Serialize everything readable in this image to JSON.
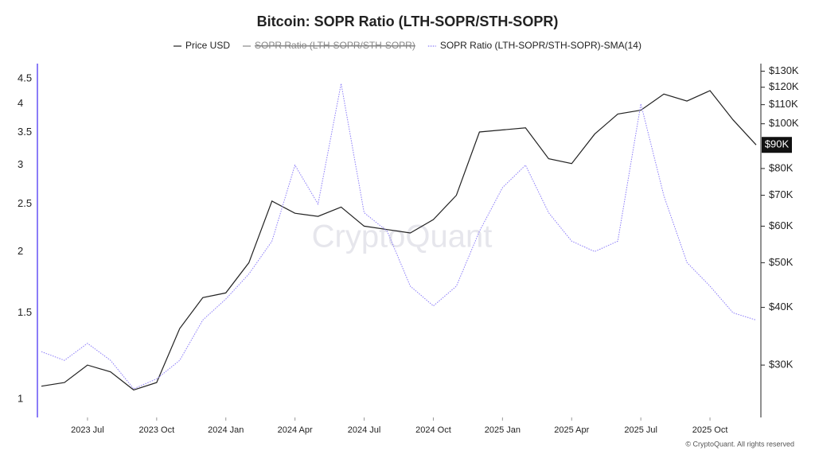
{
  "chart_data": {
    "type": "line",
    "title": "Bitcoin: SOPR Ratio (LTH-SOPR/STH-SOPR)",
    "x": [
      "2023-05",
      "2023-06",
      "2023-07",
      "2023-08",
      "2023-09",
      "2023-10",
      "2023-11",
      "2023-12",
      "2024-01",
      "2024-02",
      "2024-03",
      "2024-04",
      "2024-05",
      "2024-06",
      "2024-07",
      "2024-08",
      "2024-09",
      "2024-10",
      "2024-11",
      "2024-12",
      "2025-01",
      "2025-02",
      "2025-03",
      "2025-04",
      "2025-05",
      "2025-06",
      "2025-07",
      "2025-08",
      "2025-09",
      "2025-10",
      "2025-11",
      "2025-12"
    ],
    "xlim": [
      "2023-05",
      "2025-12"
    ],
    "xticks": [
      {
        "value": "2023-07",
        "label": "2023 Jul"
      },
      {
        "value": "2023-10",
        "label": "2023 Oct"
      },
      {
        "value": "2024-01",
        "label": "2024 Jan"
      },
      {
        "value": "2024-04",
        "label": "2024 Apr"
      },
      {
        "value": "2024-07",
        "label": "2024 Jul"
      },
      {
        "value": "2024-10",
        "label": "2024 Oct"
      },
      {
        "value": "2025-01",
        "label": "2025 Jan"
      },
      {
        "value": "2025-04",
        "label": "2025 Apr"
      },
      {
        "value": "2025-07",
        "label": "2025 Jul"
      },
      {
        "value": "2025-10",
        "label": "2025 Oct"
      }
    ],
    "series": [
      {
        "name": "Price USD",
        "color": "#222222",
        "axis": "y2",
        "values": [
          27000,
          27500,
          30000,
          29000,
          26500,
          27500,
          36000,
          42000,
          43000,
          50000,
          68000,
          64000,
          63000,
          66000,
          60000,
          59000,
          58000,
          62000,
          70000,
          96000,
          97000,
          98000,
          84000,
          82000,
          95000,
          105000,
          107000,
          116000,
          112000,
          118000,
          102000,
          90000
        ]
      },
      {
        "name": "SOPR Ratio (LTH-SOPR/STH-SOPR)-SMA(14)",
        "color": "#8b7cf8",
        "axis": "y",
        "values": [
          1.25,
          1.2,
          1.3,
          1.2,
          1.05,
          1.1,
          1.2,
          1.45,
          1.6,
          1.8,
          2.1,
          3.0,
          2.5,
          4.4,
          2.4,
          2.2,
          1.7,
          1.55,
          1.7,
          2.2,
          2.7,
          3.0,
          2.4,
          2.1,
          2.0,
          2.1,
          4.0,
          2.6,
          1.9,
          1.7,
          1.5,
          1.45
        ]
      }
    ],
    "legend_hidden": [
      {
        "name": "SOPR Ratio (LTH-SOPR/STH-SOPR)",
        "color": "#888888"
      }
    ],
    "log_scale": true,
    "ylim": [
      0.918,
      4.69
    ],
    "yticks": [
      1,
      1.5,
      2,
      2.5,
      3,
      3.5,
      4,
      4.5
    ],
    "y2lim": [
      23100,
      130800
    ],
    "y2ticks": [
      {
        "value": 30000,
        "label": "$30K"
      },
      {
        "value": 40000,
        "label": "$40K"
      },
      {
        "value": 50000,
        "label": "$50K"
      },
      {
        "value": 60000,
        "label": "$60K"
      },
      {
        "value": 70000,
        "label": "$70K"
      },
      {
        "value": 80000,
        "label": "$80K"
      },
      {
        "value": 100000,
        "label": "$100K"
      },
      {
        "value": 110000,
        "label": "$110K"
      },
      {
        "value": 120000,
        "label": "$120K"
      },
      {
        "value": 130000,
        "label": "$130K"
      }
    ],
    "current_price": {
      "value": 90000,
      "label": "$90K"
    },
    "watermark": "CryptoQuant",
    "copyright": "© CryptoQuant. All rights reserved"
  }
}
